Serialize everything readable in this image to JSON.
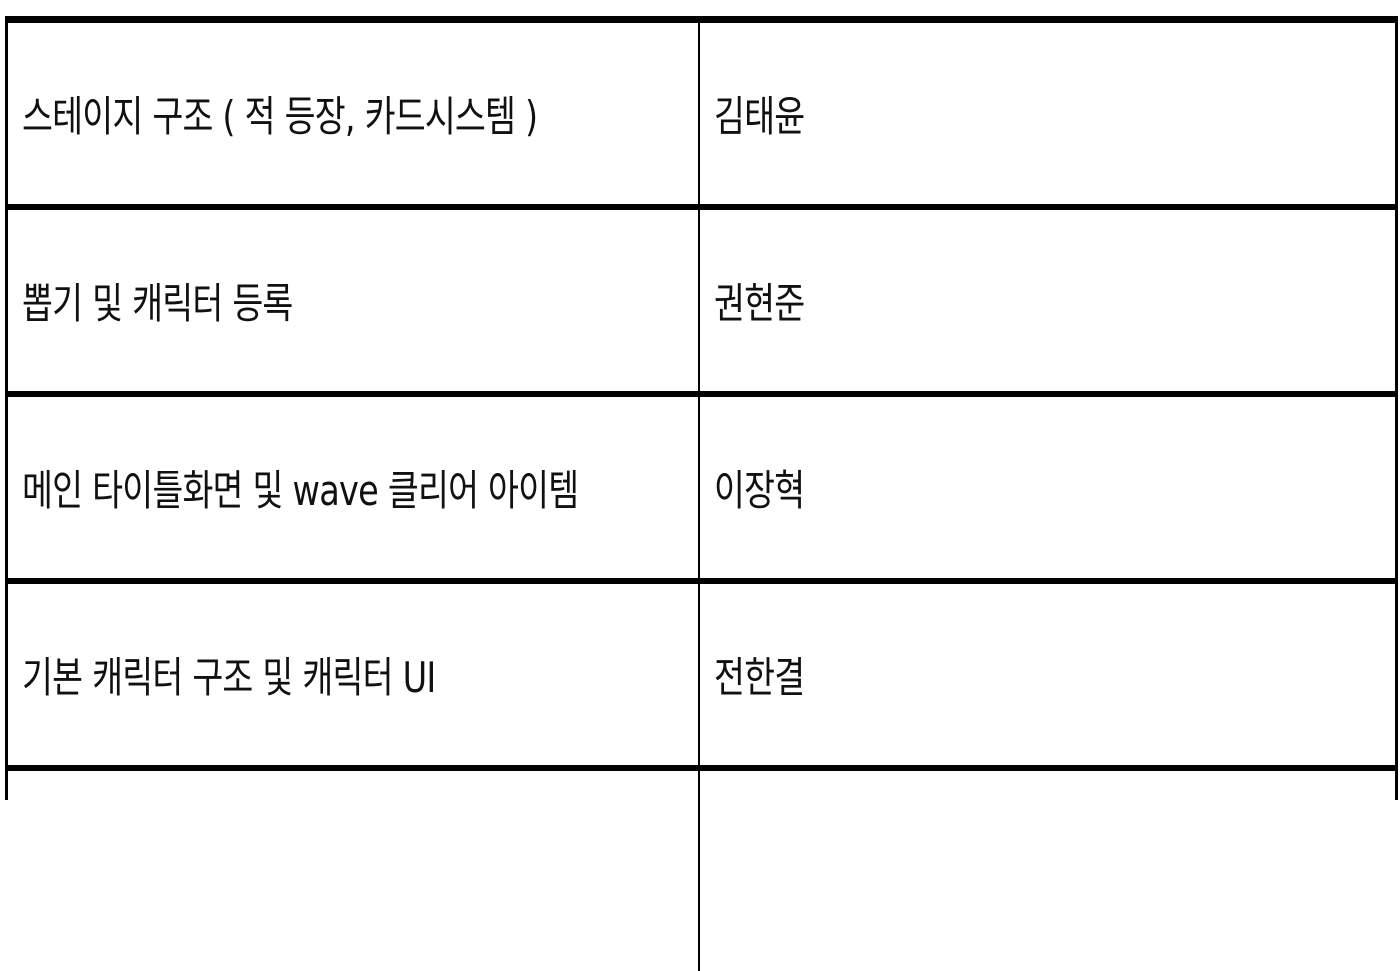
{
  "rows": [
    {
      "task": "스테이지 구조 ( 적 등장, 카드시스템 )",
      "owner": "김태윤"
    },
    {
      "task": "뽑기 및 캐릭터 등록",
      "owner": "권현준"
    },
    {
      "task": "메인 타이틀화면 및 wave 클리어 아이템",
      "owner": "이장혁"
    },
    {
      "task": "기본 캐릭터 구조 및 캐릭터 UI",
      "owner": "전한결"
    },
    {
      "task": "",
      "owner": ""
    }
  ]
}
